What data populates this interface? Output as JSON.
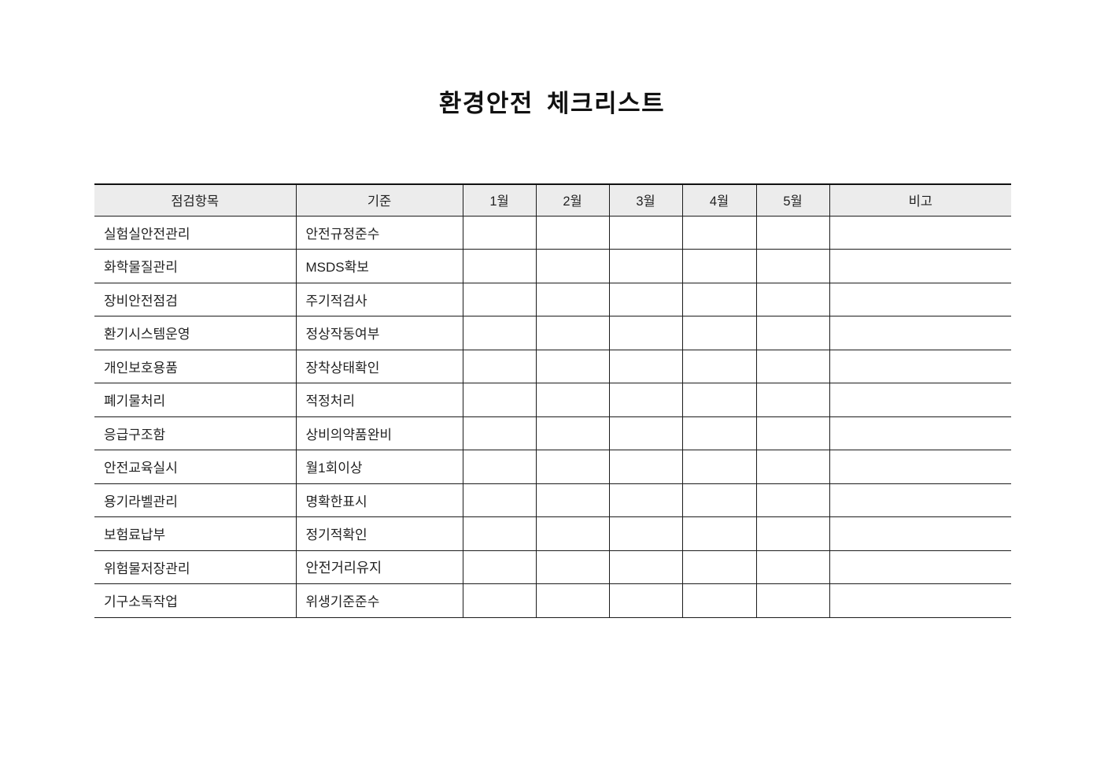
{
  "page": {
    "title": "환경안전 체크리스트"
  },
  "table": {
    "headers": [
      "점검항목",
      "기준",
      "1월",
      "2월",
      "3월",
      "4월",
      "5월",
      "비고"
    ],
    "rows": [
      {
        "item": "실험실안전관리",
        "standard": "안전규정준수",
        "note": ""
      },
      {
        "item": "화학물질관리",
        "standard": "MSDS확보",
        "note": ""
      },
      {
        "item": "장비안전점검",
        "standard": "주기적검사",
        "note": ""
      },
      {
        "item": "환기시스템운영",
        "standard": "정상작동여부",
        "note": ""
      },
      {
        "item": "개인보호용품",
        "standard": "장착상태확인",
        "note": ""
      },
      {
        "item": "폐기물처리",
        "standard": "적정처리",
        "note": ""
      },
      {
        "item": "응급구조함",
        "standard": "상비의약품완비",
        "note": ""
      },
      {
        "item": "안전교육실시",
        "standard": "월1회이상",
        "note": ""
      },
      {
        "item": "용기라벨관리",
        "standard": "명확한표시",
        "note": ""
      },
      {
        "item": "보험료납부",
        "standard": "정기적확인",
        "note": ""
      },
      {
        "item": "위험물저장관리",
        "standard": "안전거리유지",
        "note": ""
      },
      {
        "item": "기구소독작업",
        "standard": "위생기준준수",
        "note": ""
      }
    ]
  },
  "colors": {
    "header_bg": "#ececec",
    "border": "#1c1c1c",
    "text": "#222222"
  }
}
